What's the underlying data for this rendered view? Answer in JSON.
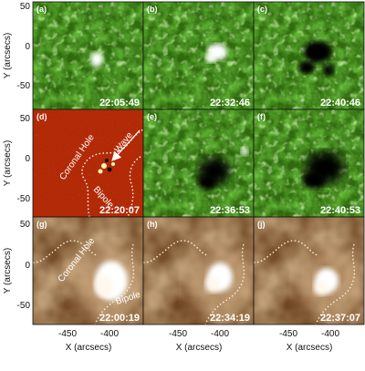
{
  "figure": {
    "panels": [
      {
        "label": "(a)",
        "time": "22:05:49",
        "colormap": "green"
      },
      {
        "label": "(b)",
        "time": "22:32:46",
        "colormap": "green"
      },
      {
        "label": "(c)",
        "time": "22:40:46",
        "colormap": "green"
      },
      {
        "label": "(d)",
        "time": "22:20:07",
        "colormap": "red"
      },
      {
        "label": "(e)",
        "time": "22:36:53",
        "colormap": "green"
      },
      {
        "label": "(f)",
        "time": "22:40:53",
        "colormap": "green"
      },
      {
        "label": "(g)",
        "time": "22:00:19",
        "colormap": "brown"
      },
      {
        "label": "(h)",
        "time": "22:34:19",
        "colormap": "brown"
      },
      {
        "label": "(j)",
        "time": "22:37:07",
        "colormap": "brown"
      }
    ],
    "y_axis_title": "Y (arcsecs)",
    "x_axis_title": "X (arcsecs)",
    "y_ticks": [
      "50",
      "0",
      "-50"
    ],
    "x_ticks": [
      "-450",
      "-400"
    ],
    "annotations": {
      "coronal_hole": "Coronal Hole",
      "bipole": "Bipole",
      "wave": "Wave"
    },
    "colors": {
      "green_base": "#2f6a0d",
      "red_base": "#b42808",
      "brown_base": "#8a5a2a",
      "annotation": "#ffffff"
    }
  }
}
